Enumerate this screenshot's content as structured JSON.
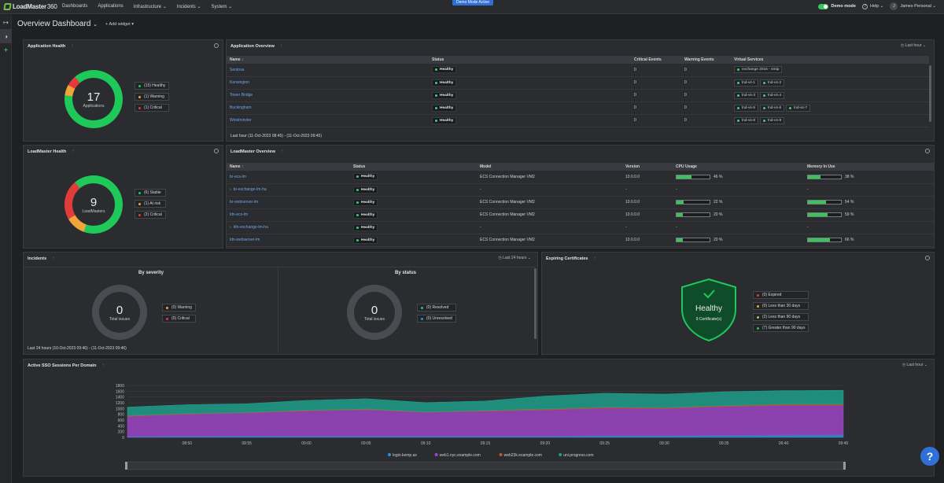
{
  "app": {
    "logo": "LoadMaster",
    "logo_suffix": "360",
    "nav": [
      "Dashboards",
      "Applications",
      "Infrastructure",
      "Incidents",
      "System"
    ],
    "demo_banner": "Demo Mode Active",
    "demo_mode_label": "Demo mode",
    "help_label": "Help",
    "user_initial": "J",
    "user_name": "James Personal"
  },
  "header": {
    "title": "Overview Dashboard",
    "add_widget": "Add widget"
  },
  "colors": {
    "healthy": "#1ec95a",
    "warning": "#f0a53a",
    "critical": "#e23b3b",
    "accent": "#2f6fd6"
  },
  "app_health": {
    "title": "Application Health",
    "count": "17",
    "count_label": "Applications",
    "shares": {
      "healthy": 15,
      "warning": 1,
      "critical": 1
    },
    "legend": [
      "(15) Healthy",
      "(1) Warning",
      "(1) Critical"
    ]
  },
  "app_overview": {
    "title": "Application Overview",
    "range": "Last hour",
    "columns": [
      "Name",
      "Status",
      "Critical Events",
      "Warning Events",
      "Virtual Services"
    ],
    "rows": [
      {
        "name": "Sentosa",
        "status": "Healthy",
        "critical": "0",
        "warning": "0",
        "vs": [
          "exchange 2016 - smtp"
        ]
      },
      {
        "name": "Kensington",
        "status": "Healthy",
        "critical": "0",
        "warning": "0",
        "vs": [
          "lnd-vs-1",
          "lnd-vs-2"
        ]
      },
      {
        "name": "Tower Bridge",
        "status": "Healthy",
        "critical": "0",
        "warning": "0",
        "vs": [
          "lnd-vs-3",
          "lnd-vs-4"
        ]
      },
      {
        "name": "Buckingham",
        "status": "Healthy",
        "critical": "0",
        "warning": "0",
        "vs": [
          "lnd-vs-5",
          "lnd-vs-6",
          "lnd-vs-7"
        ]
      },
      {
        "name": "Westminster",
        "status": "Healthy",
        "critical": "0",
        "warning": "0",
        "vs": [
          "lnd-vs-8",
          "lnd-vs-9"
        ]
      }
    ],
    "footer": "Last hour (11-Oct-2023 08:45) - (11-Oct-2023 09:45)"
  },
  "lm_health": {
    "title": "LoadMaster Health",
    "count": "9",
    "count_label": "LoadMasters",
    "shares": {
      "stable": 6,
      "at_risk": 1,
      "critical": 2
    },
    "legend": [
      "(6) Stable",
      "(1) At risk",
      "(2) Critical"
    ]
  },
  "lm_overview": {
    "title": "LoadMaster Overview",
    "columns": [
      "Name",
      "Status",
      "Model",
      "Version",
      "CPU Usage",
      "Memory In Use"
    ],
    "rows": [
      {
        "name": "br-ecs-lm",
        "expand": false,
        "status": "Healthy",
        "model": "ECS Connection Manager VM2",
        "version": "10.0.0.0",
        "cpu": "46 %",
        "cpu_v": 46,
        "mem": "38 %",
        "mem_v": 38
      },
      {
        "name": "br-exchange-lm-ha",
        "expand": true,
        "status": "Healthy",
        "model": "-",
        "version": "-",
        "cpu": "-",
        "cpu_v": null,
        "mem": "-",
        "mem_v": null
      },
      {
        "name": "br-webserver-lm",
        "expand": false,
        "status": "Healthy",
        "model": "ECS Connection Manager VM2",
        "version": "10.0.0.0",
        "cpu": "22 %",
        "cpu_v": 22,
        "mem": "54 %",
        "mem_v": 54
      },
      {
        "name": "ldn-ecs-lm",
        "expand": false,
        "status": "Healthy",
        "model": "ECS Connection Manager VM2",
        "version": "10.0.0.0",
        "cpu": "20 %",
        "cpu_v": 20,
        "mem": "59 %",
        "mem_v": 59
      },
      {
        "name": "ldn-exchange-lm-ha",
        "expand": true,
        "status": "Healthy",
        "model": "-",
        "version": "-",
        "cpu": "-",
        "cpu_v": null,
        "mem": "-",
        "mem_v": null
      },
      {
        "name": "ldn-webserver-lm",
        "expand": false,
        "status": "Healthy",
        "model": "ECS Connection Manager VM2",
        "version": "10.0.0.0",
        "cpu": "20 %",
        "cpu_v": 20,
        "mem": "66 %",
        "mem_v": 66
      }
    ]
  },
  "incidents": {
    "title": "Incidents",
    "range": "Last 24 hours",
    "by_severity": {
      "title": "By severity",
      "count": "0",
      "label": "Total issues",
      "legend": [
        "(0) Warning",
        "(0) Critical"
      ]
    },
    "by_status": {
      "title": "By status",
      "count": "0",
      "label": "Total issues",
      "legend": [
        "(0) Resolved",
        "(0) Unresolved"
      ]
    },
    "footer": "Last 24 hours (10-Oct-2023 09:46) - (11-Oct-2023 09:46)"
  },
  "certs": {
    "title": "Expiring Certificates",
    "status": "Healthy",
    "count_label": "9 Certificate(s)",
    "legend": [
      "(0) Expired",
      "(0) Less than 30 days",
      "(2) Less than 90 days",
      "(7) Greater than 90 days"
    ]
  },
  "sso": {
    "title": "Active SSO Sessions Per Domain",
    "range": "Last hour"
  },
  "chart_data": {
    "type": "area",
    "title": "Active SSO Sessions Per Domain",
    "ylim": [
      0,
      1800
    ],
    "yticks": [
      "1800",
      "1600",
      "1400",
      "1200",
      "1000",
      "800",
      "600",
      "400",
      "200",
      "0"
    ],
    "xticks": [
      "08:50",
      "08:55",
      "09:00",
      "09:05",
      "09:10",
      "09:15",
      "09:20",
      "09:25",
      "09:30",
      "09:35",
      "09:40",
      "09:45"
    ],
    "x": [
      "08:46",
      "08:50",
      "08:55",
      "09:00",
      "09:05",
      "09:10",
      "09:15",
      "09:20",
      "09:25",
      "09:30",
      "09:35",
      "09:40",
      "09:45"
    ],
    "series": [
      {
        "name": "login.kemp.ax",
        "color": "#2f8fd6",
        "values": [
          30,
          40,
          50,
          40,
          40,
          40,
          40,
          40,
          60,
          60,
          70,
          80,
          90
        ]
      },
      {
        "name": "web1.nyc.example.com",
        "color": "#9b45c4",
        "values": [
          700,
          770,
          800,
          880,
          920,
          830,
          870,
          910,
          960,
          940,
          1000,
          1030,
          1020
        ]
      },
      {
        "name": "web23k.example.com",
        "color": "#c0562c",
        "values": [
          20,
          15,
          15,
          20,
          20,
          15,
          20,
          30,
          30,
          30,
          30,
          40,
          40
        ]
      },
      {
        "name": "uni.progress.com",
        "color": "#1f9f8a",
        "values": [
          300,
          310,
          300,
          340,
          360,
          320,
          330,
          450,
          480,
          470,
          480,
          470,
          480
        ]
      }
    ],
    "grid": true,
    "legend": "bottom"
  }
}
